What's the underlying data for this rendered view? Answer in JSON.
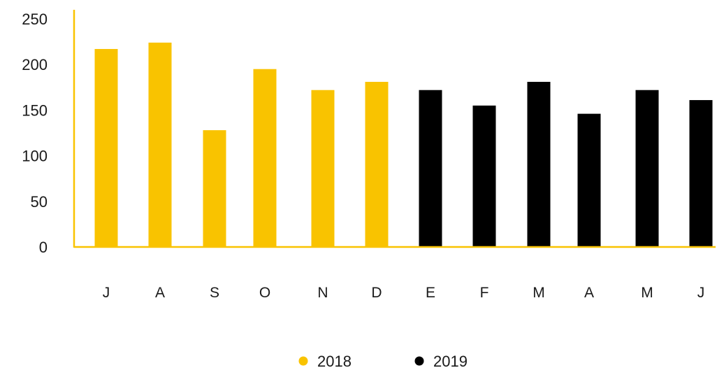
{
  "chart_data": {
    "type": "bar",
    "title": "",
    "xlabel": "",
    "ylabel": "",
    "ylim": [
      0,
      250
    ],
    "yticks": [
      0,
      50,
      100,
      150,
      200,
      250
    ],
    "categories": [
      "J",
      "A",
      "S",
      "O",
      "N",
      "D",
      "E",
      "F",
      "M",
      "A",
      "M",
      "J"
    ],
    "series": [
      {
        "name": "2018",
        "color": "#F9C300",
        "values": [
          217,
          224,
          128,
          195,
          172,
          181,
          null,
          null,
          null,
          null,
          null,
          null
        ]
      },
      {
        "name": "2019",
        "color": "#000000",
        "values": [
          null,
          null,
          null,
          null,
          null,
          null,
          172,
          155,
          181,
          146,
          172,
          161
        ]
      }
    ],
    "axis_color": "#F9C300",
    "legend_position": "bottom-center",
    "grid": false
  }
}
